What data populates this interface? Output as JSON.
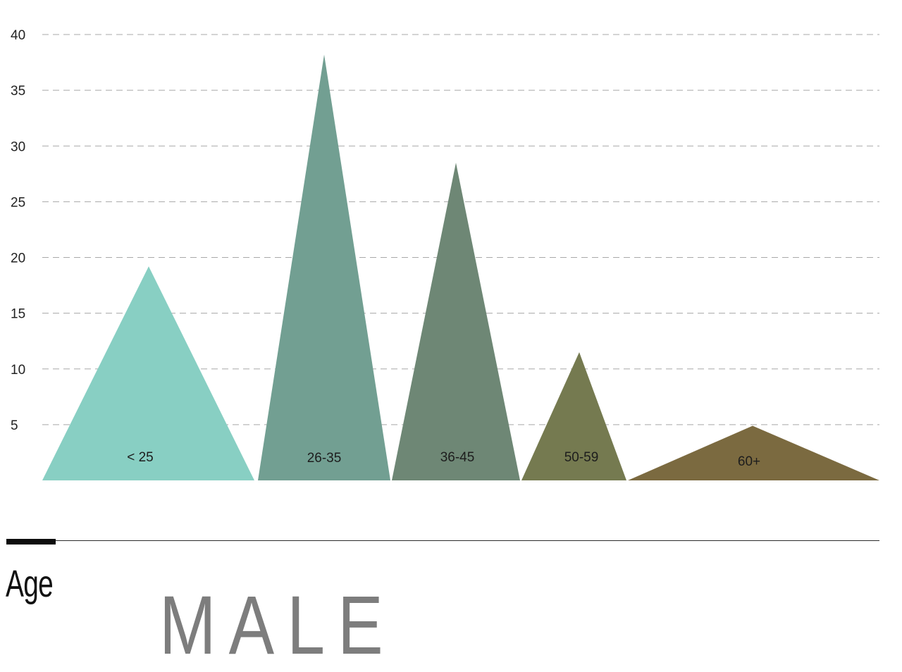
{
  "chart_data": {
    "type": "bar",
    "shape": "triangle",
    "categories": [
      "< 25",
      "26-35",
      "36-45",
      "50-59",
      "60+"
    ],
    "values": [
      19.2,
      38.2,
      28.5,
      11.5,
      4.9
    ],
    "colors": [
      "#88cfc3",
      "#729f92",
      "#6e8775",
      "#757a50",
      "#7b6a40"
    ],
    "y_ticks": [
      5,
      10,
      15,
      20,
      25,
      30,
      35,
      40
    ],
    "ylim": [
      0,
      40
    ],
    "grid": true,
    "legend": "none",
    "title": "",
    "xlabel": "",
    "ylabel": ""
  },
  "caption": "Age",
  "heading": "MALE"
}
